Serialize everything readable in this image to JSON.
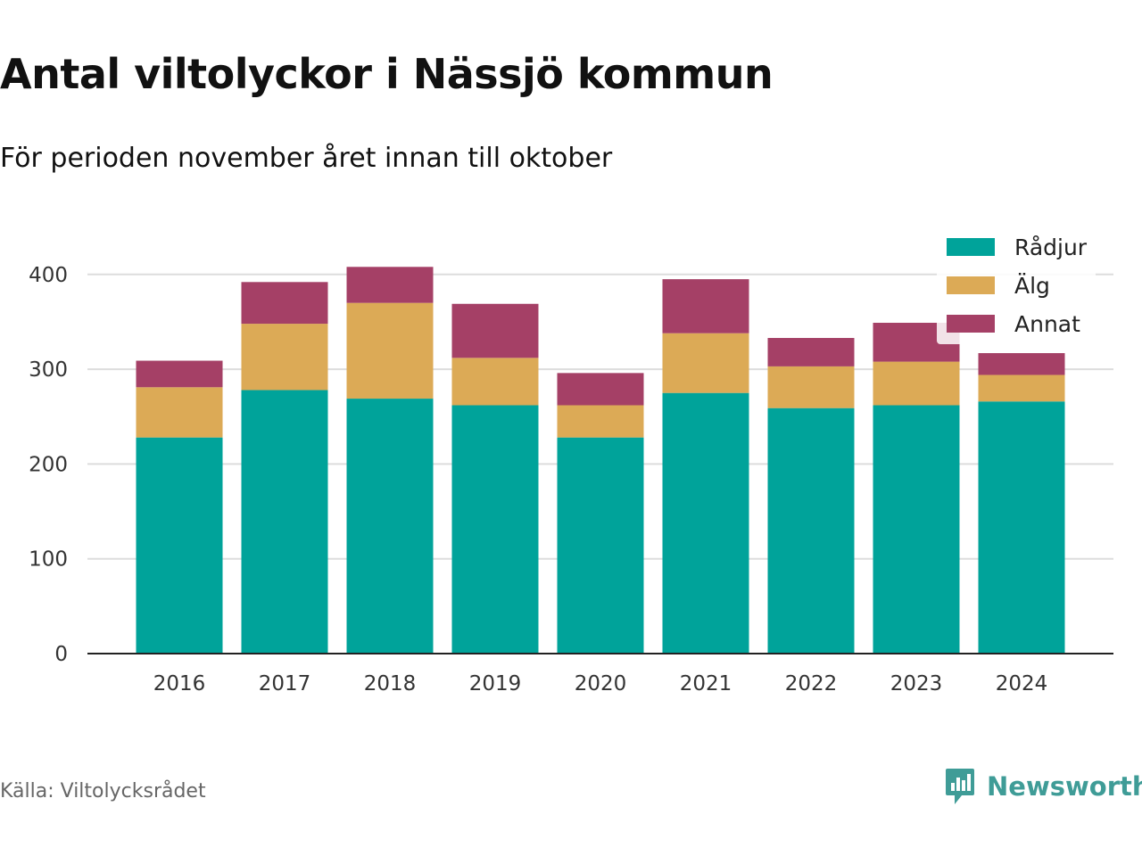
{
  "title": "Antal viltolyckor i Nässjö kommun",
  "subtitle": "För perioden november året innan till oktober",
  "source": "Källa: Viltolycksrådet",
  "brand": "Newsworthy",
  "colors": {
    "radjur": "#00a39a",
    "alg": "#dcaa56",
    "annat": "#a54066",
    "brand": "#3f9c97"
  },
  "chart_data": {
    "type": "bar",
    "stacked": true,
    "categories": [
      "2016",
      "2017",
      "2018",
      "2019",
      "2020",
      "2021",
      "2022",
      "2023",
      "2024"
    ],
    "series": [
      {
        "name": "Rådjur",
        "color": "#00a39a",
        "values": [
          228,
          278,
          269,
          262,
          228,
          275,
          259,
          262,
          266
        ]
      },
      {
        "name": "Älg",
        "color": "#dcaa56",
        "values": [
          53,
          70,
          101,
          50,
          34,
          63,
          44,
          46,
          28
        ]
      },
      {
        "name": "Annat",
        "color": "#a54066",
        "values": [
          28,
          44,
          38,
          57,
          34,
          57,
          30,
          41,
          23
        ]
      }
    ],
    "ylim": [
      0,
      430
    ],
    "yticks": [
      0,
      100,
      200,
      300,
      400
    ],
    "grid": true,
    "legend": "top-right"
  }
}
